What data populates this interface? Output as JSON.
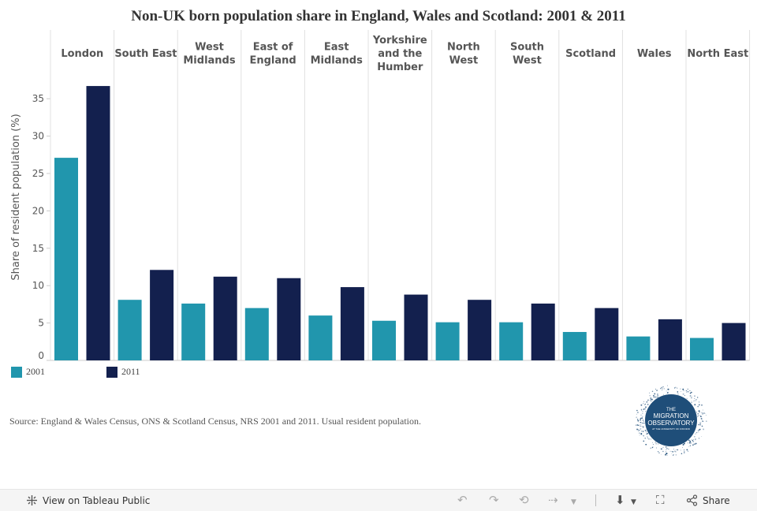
{
  "title": "Non-UK born population share in England, Wales and Scotland: 2001 & 2011",
  "chart_data": {
    "type": "bar",
    "categories": [
      "London",
      "South East",
      "West Midlands",
      "East of England",
      "East Midlands",
      "Yorkshire and the Humber",
      "North West",
      "South West",
      "Scotland",
      "Wales",
      "North East"
    ],
    "category_labels": [
      [
        "London"
      ],
      [
        "South East"
      ],
      [
        "West",
        "Midlands"
      ],
      [
        "East of",
        "England"
      ],
      [
        "East",
        "Midlands"
      ],
      [
        "Yorkshire",
        "and the",
        "Humber"
      ],
      [
        "North",
        "West"
      ],
      [
        "South",
        "West"
      ],
      [
        "Scotland"
      ],
      [
        "Wales"
      ],
      [
        "North East"
      ]
    ],
    "series": [
      {
        "name": "2001",
        "color": "#2196ad",
        "values": [
          27.1,
          8.1,
          7.6,
          7.0,
          6.0,
          5.3,
          5.1,
          5.1,
          3.8,
          3.2,
          3.0
        ]
      },
      {
        "name": "2011",
        "color": "#13204e",
        "values": [
          36.7,
          12.1,
          11.2,
          11.0,
          9.8,
          8.8,
          8.1,
          7.6,
          7.0,
          5.5,
          5.0
        ]
      }
    ],
    "ylabel": "Share of resident population (%)",
    "ylim": [
      0,
      40
    ],
    "yticks": [
      0,
      5,
      10,
      15,
      20,
      25,
      30,
      35
    ],
    "legend_position": "bottom-left",
    "grid": false
  },
  "source": "Source: England & Wales  Census, ONS & Scotland Census, NRS 2001 and 2011. Usual resident population.",
  "logo": {
    "line1": "THE",
    "line2": "MIGRATION",
    "line3": "OBSERVATORY",
    "line4": "AT THE UNIVERSITY OF OXFORD"
  },
  "toolbar": {
    "view_label": "View on Tableau Public",
    "share_label": "Share",
    "icons": [
      "tableau-icon",
      "undo-icon",
      "redo-icon",
      "revert-icon",
      "refresh-icon",
      "download-icon",
      "fullscreen-icon",
      "share-icon"
    ]
  }
}
